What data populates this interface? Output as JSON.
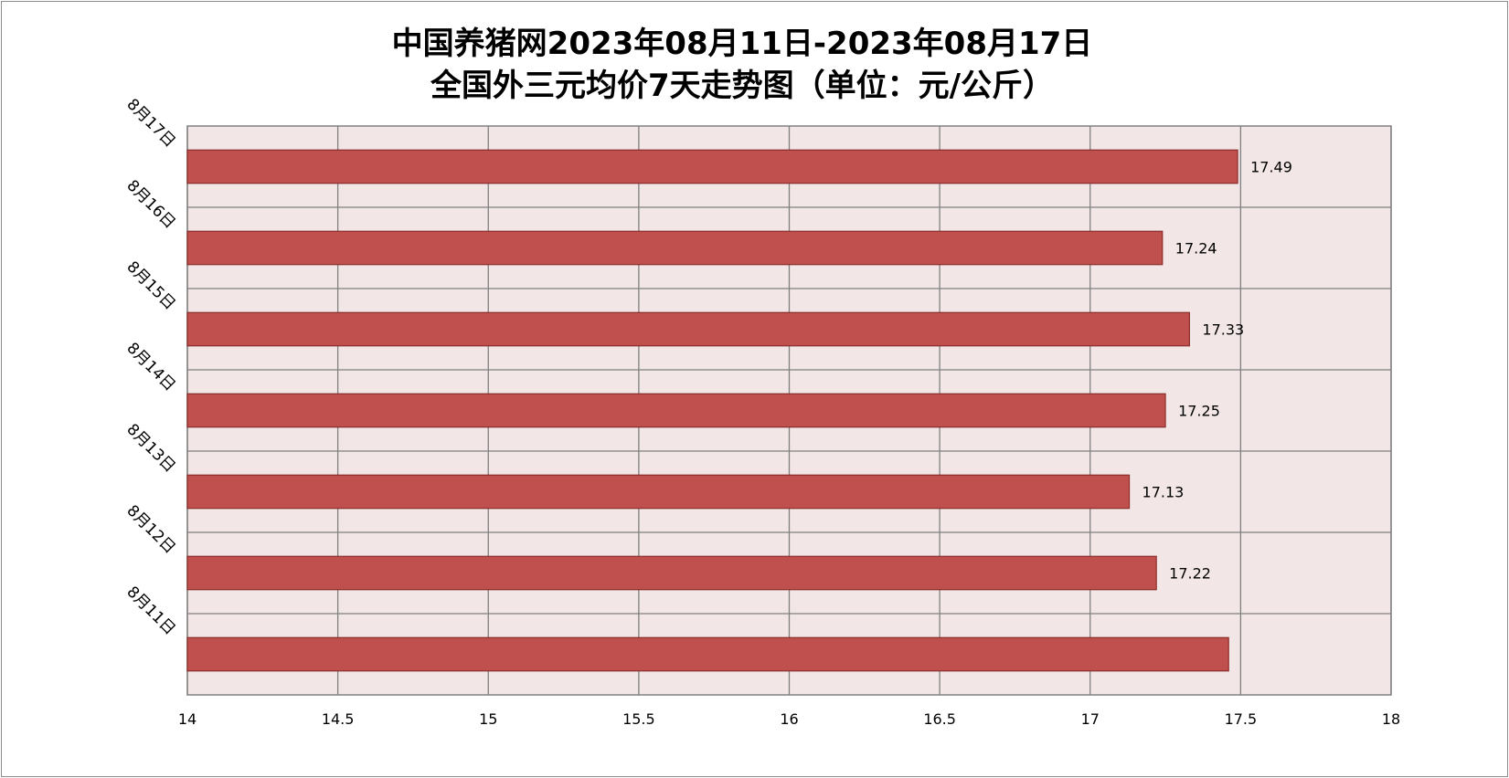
{
  "chart_data": {
    "type": "bar",
    "orientation": "horizontal",
    "title_lines": [
      "中国养猪网2023年08月11日-2023年08月17日",
      "全国外三元均价7天走势图（单位：元/公斤）"
    ],
    "categories": [
      "8月11日",
      "8月12日",
      "8月13日",
      "8月14日",
      "8月15日",
      "8月16日",
      "8月17日"
    ],
    "values": [
      17.46,
      17.22,
      17.13,
      17.25,
      17.33,
      17.24,
      17.49
    ],
    "data_labels": [
      "",
      "17.22",
      "17.13",
      "17.25",
      "17.33",
      "17.24",
      "17.49"
    ],
    "xlim": [
      14,
      18
    ],
    "xticks": [
      14,
      14.5,
      15,
      15.5,
      16,
      16.5,
      17,
      17.5,
      18
    ],
    "xtick_labels": [
      "14",
      "14.5",
      "15",
      "15.5",
      "16",
      "16.5",
      "17",
      "17.5",
      "18"
    ],
    "grid": true,
    "legend": "none",
    "colors": {
      "bar_fill": "#c0504d",
      "bar_stroke": "#8b2e2b",
      "plot_background": "#f2e6e6",
      "grid": "#808080"
    }
  }
}
